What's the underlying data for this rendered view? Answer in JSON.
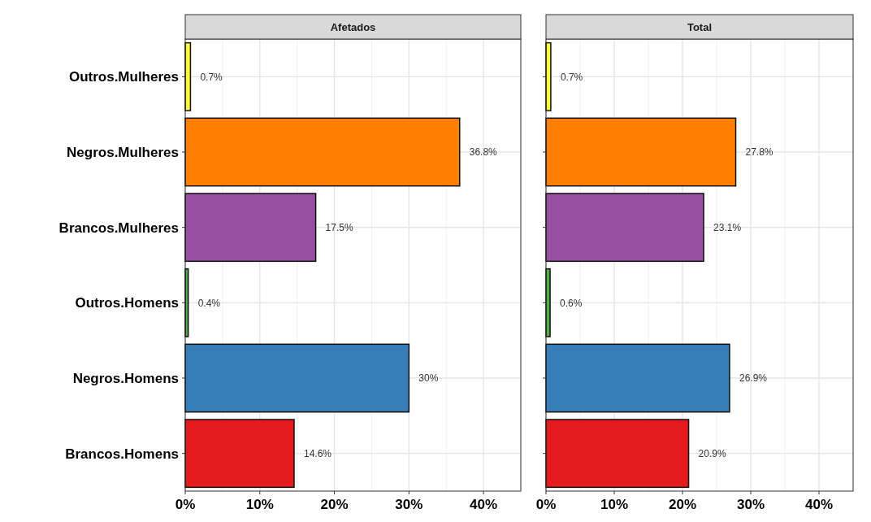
{
  "chart_data": [
    {
      "type": "bar",
      "orientation": "horizontal",
      "title": "Afetados",
      "categories": [
        "Outros.Mulheres",
        "Negros.Mulheres",
        "Brancos.Mulheres",
        "Outros.Homens",
        "Negros.Homens",
        "Brancos.Homens"
      ],
      "values": [
        0.7,
        36.8,
        17.5,
        0.4,
        30,
        14.6
      ],
      "value_labels": [
        "0.7%",
        "36.8%",
        "17.5%",
        "0.4%",
        "30%",
        "14.6%"
      ],
      "colors": [
        "#ffff33",
        "#ff7f00",
        "#984ea3",
        "#4daf4a",
        "#377eb8",
        "#e41a1c"
      ],
      "xlim": [
        0,
        45
      ],
      "xticks": [
        {
          "value": 0,
          "label": "0%"
        },
        {
          "value": 10,
          "label": "10%"
        },
        {
          "value": 20,
          "label": "20%"
        },
        {
          "value": 30,
          "label": "30%"
        },
        {
          "value": 40,
          "label": "40%"
        }
      ],
      "grid": true
    },
    {
      "type": "bar",
      "orientation": "horizontal",
      "title": "Total",
      "categories": [
        null,
        null,
        null,
        null,
        null,
        null
      ],
      "values": [
        0.7,
        27.8,
        23.1,
        0.6,
        26.9,
        20.9
      ],
      "value_labels": [
        "0.7%",
        "27.8%",
        "23.1%",
        "0.6%",
        "26.9%",
        "20.9%"
      ],
      "colors": [
        "#ffff33",
        "#ff7f00",
        "#984ea3",
        "#4daf4a",
        "#377eb8",
        "#e41a1c"
      ],
      "xlim": [
        0,
        45
      ],
      "xticks": [
        {
          "value": 0,
          "label": "0%"
        },
        {
          "value": 10,
          "label": "10%"
        },
        {
          "value": 20,
          "label": "20%"
        },
        {
          "value": 30,
          "label": "30%"
        },
        {
          "value": 40,
          "label": "40%"
        }
      ],
      "grid": true,
      "tick_labels": "x"
    }
  ]
}
